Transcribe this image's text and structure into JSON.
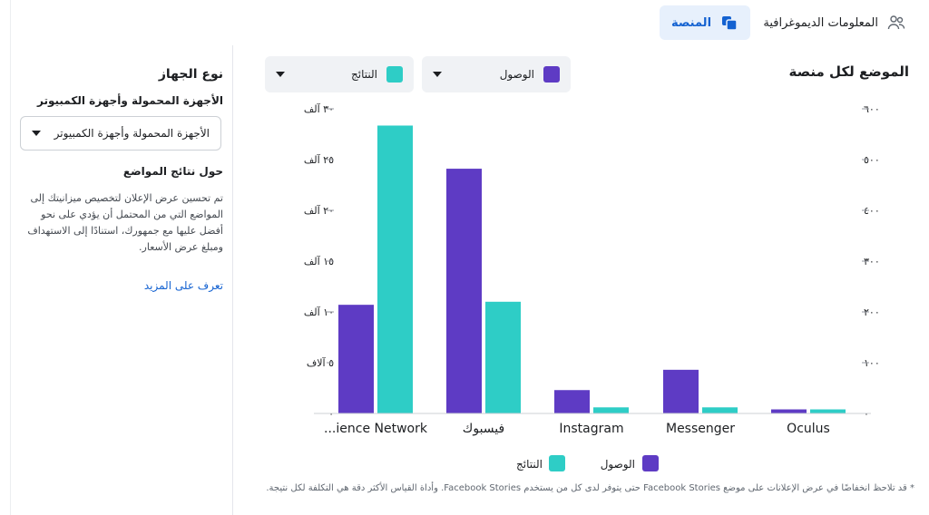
{
  "tabs": {
    "demographics": "المعلومات الديموغرافية",
    "platform": "المنصة"
  },
  "sidebar": {
    "title": "نوع الجهاز",
    "subtitle": "الأجهزة المحمولة وأجهزة الكمبيوتر",
    "select_value": "الأجهزة المحمولة وأجهزة الكمبيوتر",
    "about_title": "حول نتائج المواضع",
    "about_body": "تم تحسين عرض الإعلان لتخصيص ميزانيتك إلى المواضع التي من المحتمل أن يؤدي على نحو أفضل عليها مع جمهورك، استنادًا إلى الاستهداف ومبلغ عرض الأسعار.",
    "learn_more": "تعرف على المزيد"
  },
  "main": {
    "title": "الموضع لكل منصة",
    "dropdown_reach": "الوصول",
    "dropdown_results": "النتائج",
    "footnote": "* قد تلاحظ انخفاضًا في عرض الإعلانات على موضع Facebook Stories حتى يتوفر لدى كل من يستخدم Facebook Stories. وأداة القياس الأكثر دقة هي التكلفة لكل نتيجة."
  },
  "colors": {
    "reach": "#5e3bc4",
    "results": "#2ecdc6",
    "accent": "#1462d1",
    "tab_bg": "#e7f0fc"
  },
  "chart_data": {
    "type": "bar",
    "categories": [
      "...ience Network",
      "فيسبوك",
      "Instagram",
      "Messenger",
      "Oculus"
    ],
    "series": [
      {
        "name": "الوصول",
        "axis": "left",
        "values": [
          10700,
          24100,
          2300,
          4300,
          400
        ]
      },
      {
        "name": "النتائج",
        "axis": "right",
        "values": [
          567,
          220,
          12,
          12,
          8
        ]
      }
    ],
    "left_axis": {
      "ticks": [
        "٠",
        "٥ آلاف",
        "١٠ آلف",
        "١٥ آلف",
        "٢٠ آلف",
        "٢٥ آلف",
        "٣٠ آلف"
      ],
      "ylim": [
        0,
        30000
      ]
    },
    "right_axis": {
      "ticks": [
        "٠",
        "١٠٠",
        "٢٠٠",
        "٣٠٠",
        "٤٠٠",
        "٥٠٠",
        "٦٠٠"
      ],
      "ylim": [
        0,
        600
      ]
    },
    "legend": [
      "الوصول",
      "النتائج"
    ],
    "legend_position": "bottom",
    "grid": false
  }
}
